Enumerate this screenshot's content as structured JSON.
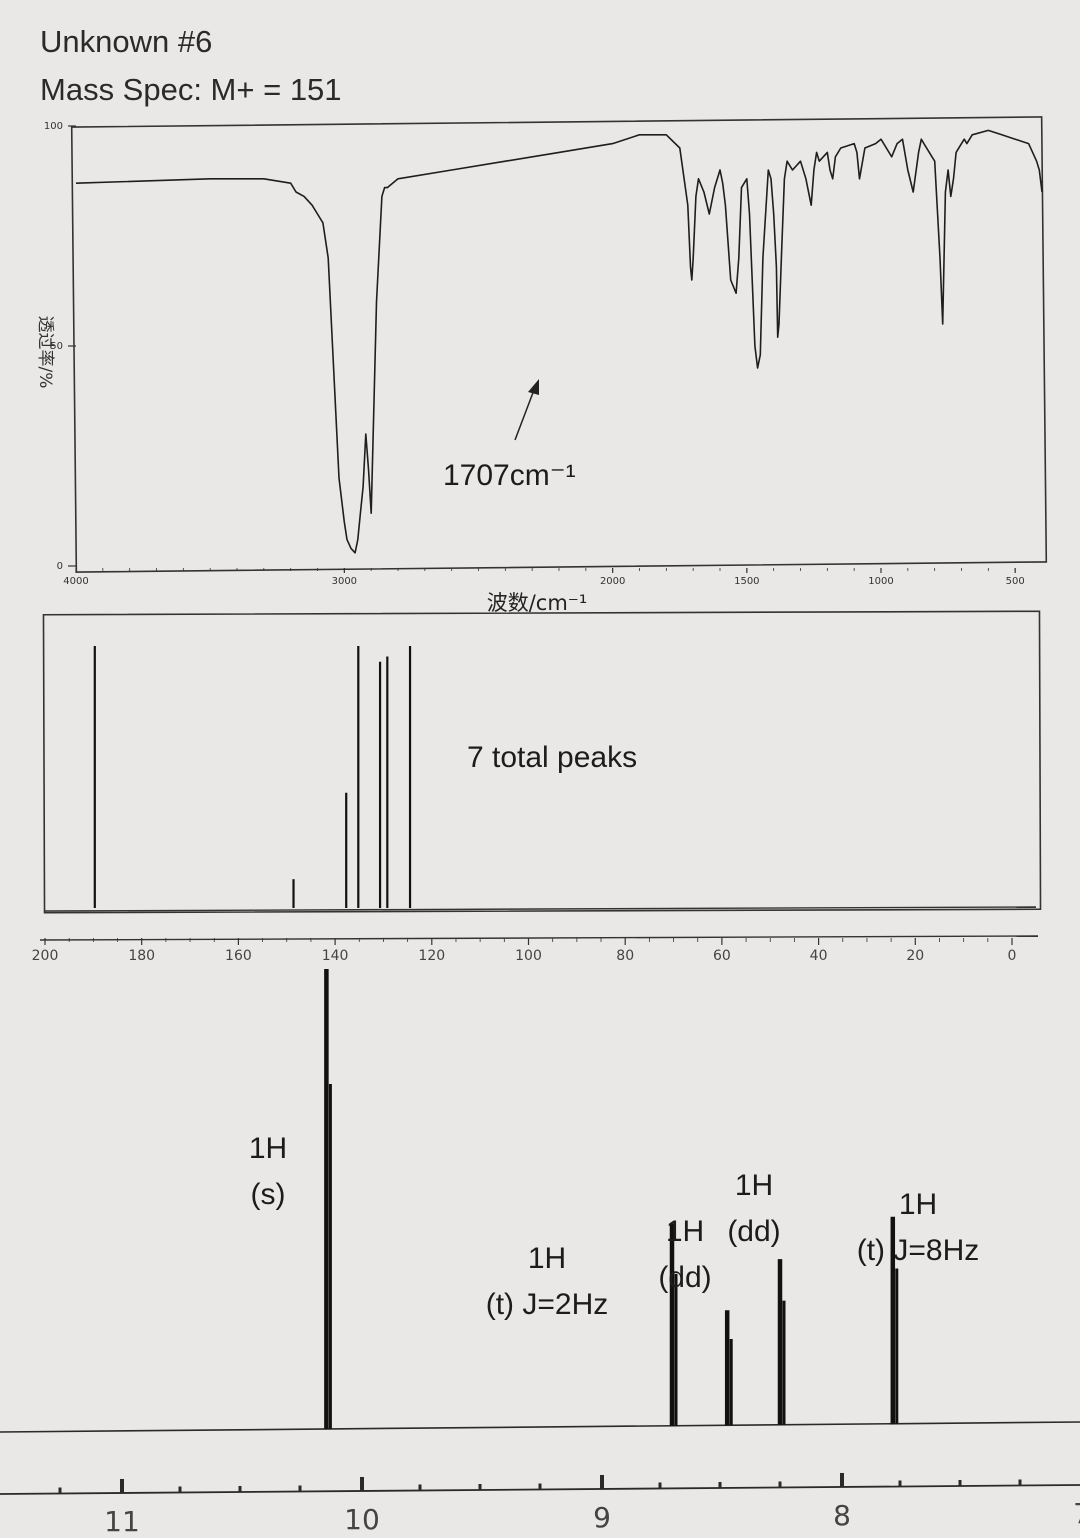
{
  "header": {
    "title": "Unknown #6",
    "mass_spec": "Mass Spec: M+ = 151"
  },
  "colors": {
    "paper": "#e9e8e6",
    "ink": "#1e1e1e"
  },
  "chart_data": [
    {
      "type": "line",
      "name": "ir",
      "xlabel": "波数/cm⁻¹",
      "ylabel": "透过率/%",
      "xlim": [
        4000,
        400
      ],
      "ylim": [
        0,
        100
      ],
      "x_ticks": [
        4000,
        3000,
        2000,
        1500,
        1000,
        500
      ],
      "x_tick_labels": [
        "4000",
        "3000",
        "2000",
        "1500",
        "1000",
        "500"
      ],
      "y_ticks": [
        0,
        50,
        100
      ],
      "y_tick_labels": [
        "0",
        "50",
        "100"
      ],
      "annotation": "1707cm⁻¹",
      "x": [
        4000,
        3500,
        3300,
        3200,
        3180,
        3150,
        3120,
        3100,
        3080,
        3060,
        3040,
        3020,
        3000,
        2990,
        2975,
        2960,
        2950,
        2940,
        2930,
        2920,
        2910,
        2900,
        2880,
        2860,
        2850,
        2840,
        2820,
        2800,
        2600,
        2400,
        2200,
        2000,
        1900,
        1800,
        1750,
        1720,
        1710,
        1705,
        1700,
        1690,
        1680,
        1660,
        1640,
        1620,
        1600,
        1590,
        1580,
        1560,
        1540,
        1530,
        1520,
        1500,
        1490,
        1480,
        1470,
        1460,
        1450,
        1440,
        1420,
        1410,
        1400,
        1390,
        1385,
        1380,
        1370,
        1360,
        1350,
        1330,
        1300,
        1280,
        1260,
        1250,
        1240,
        1230,
        1200,
        1190,
        1180,
        1170,
        1150,
        1100,
        1090,
        1080,
        1060,
        1020,
        1000,
        960,
        940,
        920,
        900,
        880,
        860,
        850,
        840,
        820,
        800,
        780,
        770,
        760,
        750,
        740,
        730,
        720,
        700,
        690,
        680,
        660,
        600,
        550,
        500,
        450,
        420,
        410,
        400
      ],
      "y": [
        87,
        88,
        88,
        87,
        85,
        84,
        82,
        80,
        78,
        70,
        45,
        20,
        10,
        6,
        4,
        3,
        6,
        12,
        18,
        30,
        22,
        12,
        60,
        84,
        86,
        86,
        87,
        88,
        90,
        92,
        94,
        96,
        98,
        98,
        95,
        82,
        68,
        65,
        70,
        84,
        88,
        85,
        80,
        86,
        90,
        87,
        82,
        65,
        62,
        70,
        86,
        88,
        80,
        65,
        50,
        45,
        48,
        70,
        90,
        88,
        80,
        68,
        52,
        55,
        72,
        88,
        92,
        90,
        92,
        88,
        82,
        90,
        94,
        92,
        94,
        90,
        88,
        93,
        95,
        96,
        94,
        88,
        95,
        96,
        97,
        93,
        96,
        97,
        90,
        85,
        94,
        97,
        96,
        94,
        92,
        70,
        55,
        85,
        90,
        84,
        88,
        94,
        96,
        97,
        96,
        98,
        99,
        98,
        97,
        96,
        92,
        90,
        85
      ]
    },
    {
      "type": "bar",
      "name": "c13",
      "annotation": "7 total peaks",
      "xlim": [
        200,
        0
      ],
      "x_ticks": [
        200,
        180,
        160,
        140,
        120,
        100,
        80,
        60,
        40,
        20,
        0
      ],
      "x_tick_labels": [
        "200",
        "180",
        "160",
        "140",
        "120",
        "100",
        "80",
        "60",
        "40",
        "20",
        "0"
      ],
      "peaks_ppm": [
        189.7,
        148.6,
        137.7,
        135.2,
        130.7,
        129.2,
        124.5
      ],
      "peaks_height": [
        1.0,
        0.11,
        0.44,
        1.0,
        0.94,
        0.96,
        1.0
      ]
    },
    {
      "type": "bar",
      "name": "h1",
      "xlim": [
        11.5,
        7.0
      ],
      "x_ticks": [
        11,
        10,
        9,
        8,
        7
      ],
      "x_tick_labels": [
        "11",
        "10",
        "9",
        "8",
        "7"
      ],
      "peaks_ppm": [
        10.14,
        8.7,
        8.47,
        8.25,
        7.78
      ],
      "peaks_height": [
        1.0,
        0.44,
        0.25,
        0.36,
        0.45
      ],
      "peak_labels": [
        [
          "1H",
          "(s)"
        ],
        [
          "1H",
          "(t) J=2Hz"
        ],
        [
          "1H",
          "(dd)"
        ],
        [
          "1H",
          "(dd)"
        ],
        [
          "1H",
          "(t) J=8Hz"
        ]
      ]
    }
  ]
}
